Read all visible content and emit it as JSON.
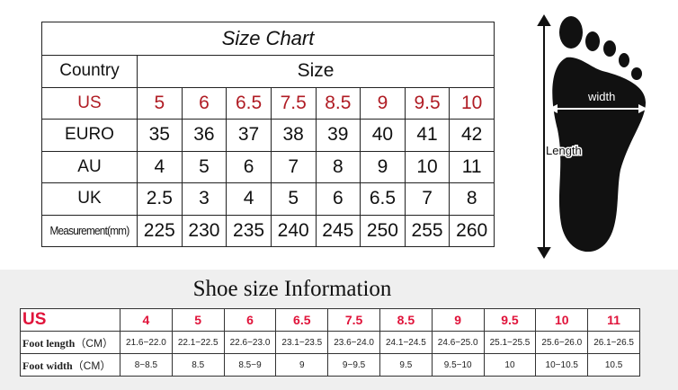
{
  "size_chart": {
    "title": "Size Chart",
    "header_country": "Country",
    "header_size": "Size",
    "rows": [
      {
        "label": "US",
        "values": [
          "5",
          "6",
          "6.5",
          "7.5",
          "8.5",
          "9",
          "9.5",
          "10"
        ]
      },
      {
        "label": "EURO",
        "values": [
          "35",
          "36",
          "37",
          "38",
          "39",
          "40",
          "41",
          "42"
        ]
      },
      {
        "label": "AU",
        "values": [
          "4",
          "5",
          "6",
          "7",
          "8",
          "9",
          "10",
          "11"
        ]
      },
      {
        "label": "UK",
        "values": [
          "2.5",
          "3",
          "4",
          "5",
          "6",
          "6.5",
          "7",
          "8"
        ]
      },
      {
        "label": "Measurement(mm)",
        "values": [
          "225",
          "230",
          "235",
          "240",
          "245",
          "250",
          "255",
          "260"
        ]
      }
    ],
    "accent_color": "#b01c24"
  },
  "foot_diagram": {
    "width_label": "width",
    "length_label": "Length"
  },
  "info": {
    "title": "Shoe size Information",
    "us_label": "US",
    "us_sizes": [
      "4",
      "5",
      "6",
      "6.5",
      "7.5",
      "8.5",
      "9",
      "9.5",
      "10",
      "11"
    ],
    "foot_length_label": "Foot length",
    "foot_length_unit": "（CM）",
    "foot_length": [
      "21.6−22.0",
      "22.1−22.5",
      "22.6−23.0",
      "23.1−23.5",
      "23.6−24.0",
      "24.1−24.5",
      "24.6−25.0",
      "25.1−25.5",
      "25.6−26.0",
      "26.1−26.5"
    ],
    "foot_width_label": "Foot width",
    "foot_width_unit": "（CM）",
    "foot_width": [
      "8−8.5",
      "8.5",
      "8.5−9",
      "9",
      "9−9.5",
      "9.5",
      "9.5−10",
      "10",
      "10−10.5",
      "10.5"
    ],
    "accent_color": "#e0133a"
  }
}
